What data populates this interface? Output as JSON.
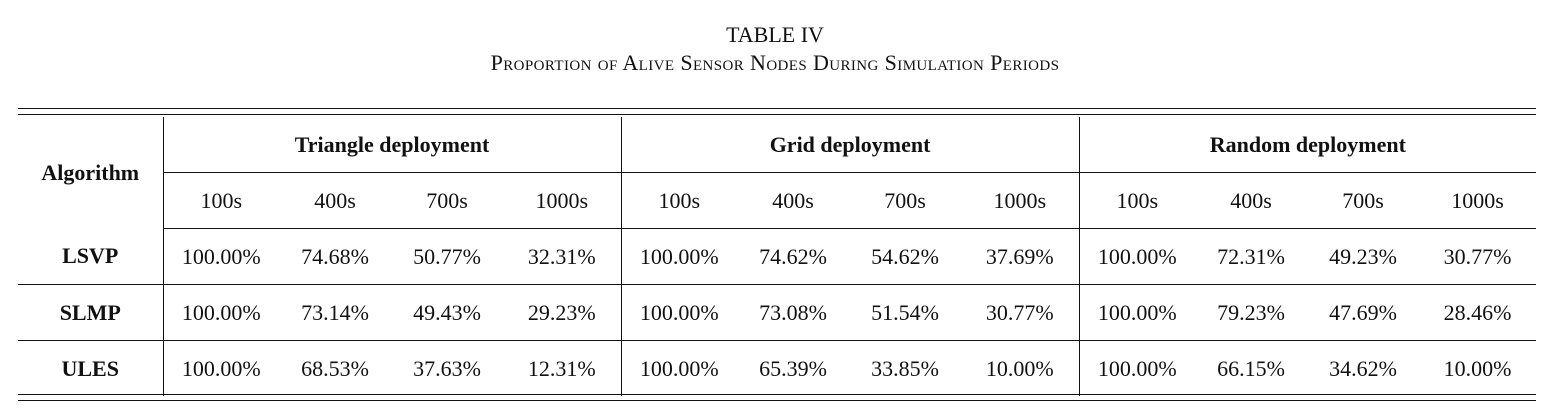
{
  "caption": {
    "label": "TABLE IV",
    "title": "Proportion of Alive Sensor Nodes During Simulation Periods"
  },
  "table": {
    "row_header": "Algorithm",
    "groups": [
      "Triangle deployment",
      "Grid deployment",
      "Random deployment"
    ],
    "periods": [
      "100s",
      "400s",
      "700s",
      "1000s"
    ],
    "rows": [
      {
        "algorithm": "LSVP",
        "values": [
          "100.00%",
          "74.68%",
          "50.77%",
          "32.31%",
          "100.00%",
          "74.62%",
          "54.62%",
          "37.69%",
          "100.00%",
          "72.31%",
          "49.23%",
          "30.77%"
        ]
      },
      {
        "algorithm": "SLMP",
        "values": [
          "100.00%",
          "73.14%",
          "49.43%",
          "29.23%",
          "100.00%",
          "73.08%",
          "51.54%",
          "30.77%",
          "100.00%",
          "79.23%",
          "47.69%",
          "28.46%"
        ]
      },
      {
        "algorithm": "ULES",
        "values": [
          "100.00%",
          "68.53%",
          "37.63%",
          "12.31%",
          "100.00%",
          "65.39%",
          "33.85%",
          "10.00%",
          "100.00%",
          "66.15%",
          "34.62%",
          "10.00%"
        ]
      }
    ]
  }
}
